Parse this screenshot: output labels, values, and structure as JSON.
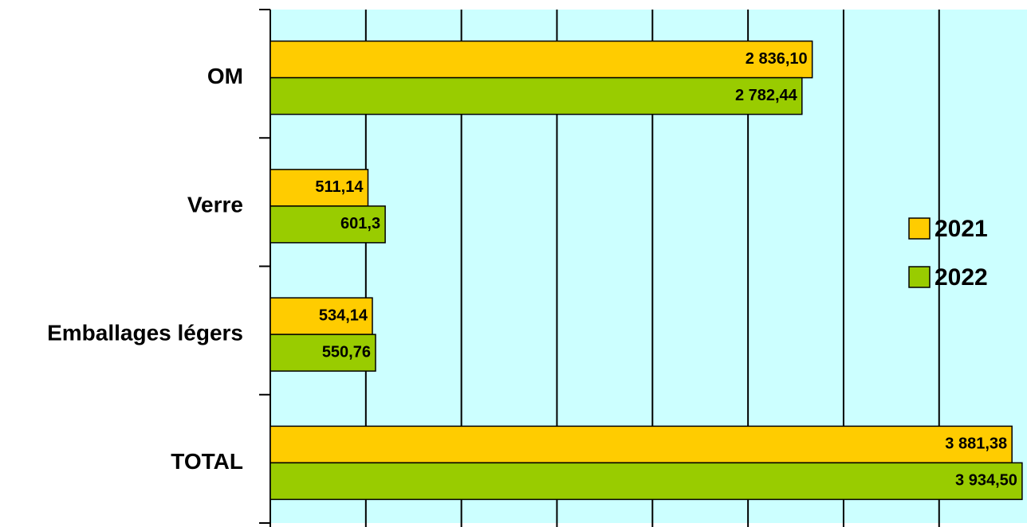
{
  "chart_data": {
    "type": "bar",
    "orientation": "horizontal",
    "categories": [
      "OM",
      "Verre",
      "Emballages légers",
      "TOTAL"
    ],
    "series": [
      {
        "name": "2021",
        "color": "#ffcc00",
        "values": [
          2836.1,
          511.14,
          534.14,
          3881.38
        ],
        "value_labels": [
          "2 836,10",
          "511,14",
          "534,14",
          "3 881,38"
        ]
      },
      {
        "name": "2022",
        "color": "#99cc00",
        "values": [
          2782.44,
          601.3,
          550.76,
          3934.5
        ],
        "value_labels": [
          "2 782,44",
          "601,3",
          "550,76",
          "3 934,50"
        ]
      }
    ],
    "xlim": [
      0,
      3960
    ],
    "xticks": [
      0,
      500,
      1000,
      1500,
      2000,
      2500,
      3000,
      3500
    ],
    "grid": true,
    "legend": "right"
  }
}
